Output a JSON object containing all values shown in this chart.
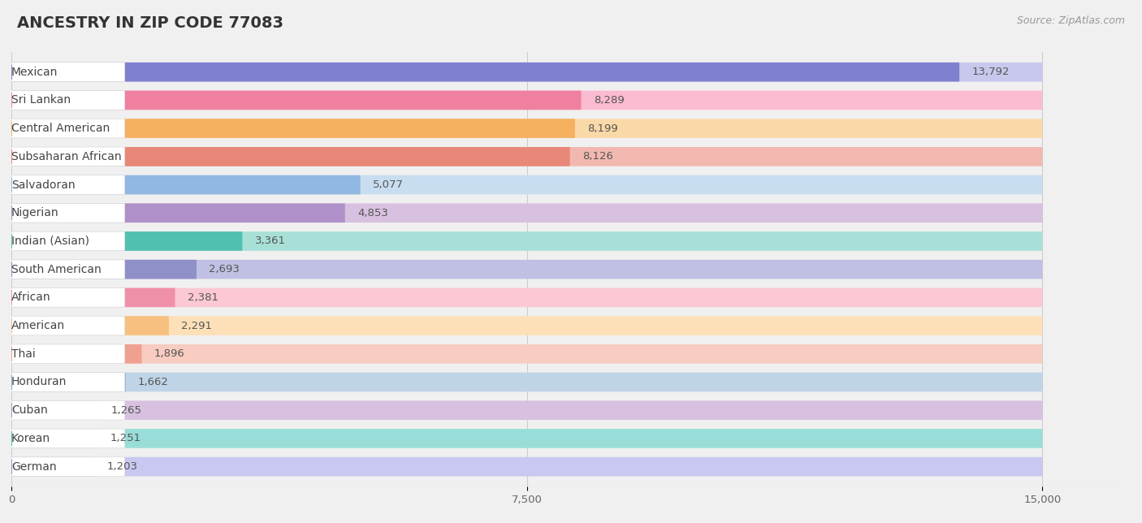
{
  "title": "ANCESTRY IN ZIP CODE 77083",
  "source": "Source: ZipAtlas.com",
  "categories": [
    "Mexican",
    "Sri Lankan",
    "Central American",
    "Subsaharan African",
    "Salvadoran",
    "Nigerian",
    "Indian (Asian)",
    "South American",
    "African",
    "American",
    "Thai",
    "Honduran",
    "Cuban",
    "Korean",
    "German"
  ],
  "values": [
    13792,
    8289,
    8199,
    8126,
    5077,
    4853,
    3361,
    2693,
    2381,
    2291,
    1896,
    1662,
    1265,
    1251,
    1203
  ],
  "bar_colors": [
    "#8080d0",
    "#f080a0",
    "#f5b060",
    "#e88878",
    "#90b8e0",
    "#b090c8",
    "#50c0b0",
    "#9090c8",
    "#f090a8",
    "#f8c080",
    "#f0a090",
    "#88aacc",
    "#b090c0",
    "#40bfb0",
    "#9898d0"
  ],
  "bar_bg_colors": [
    "#c8c8ee",
    "#fbbbd0",
    "#fad9a8",
    "#f2b8b0",
    "#c8ddf0",
    "#d8c0e0",
    "#a8e0d8",
    "#c0c0e4",
    "#fbc8d4",
    "#fde0b8",
    "#f8ccc0",
    "#c0d4e8",
    "#d8c0e0",
    "#98ddd8",
    "#c8c8f0"
  ],
  "xlim": [
    0,
    15000
  ],
  "xticks": [
    0,
    7500,
    15000
  ],
  "xtick_labels": [
    "0",
    "7,500",
    "15,000"
  ],
  "background_color": "#f0f0f0",
  "row_bg_color": "#f8f8f8",
  "title_fontsize": 14,
  "source_fontsize": 9,
  "label_fontsize": 10,
  "value_fontsize": 9.5,
  "bar_height": 0.68
}
